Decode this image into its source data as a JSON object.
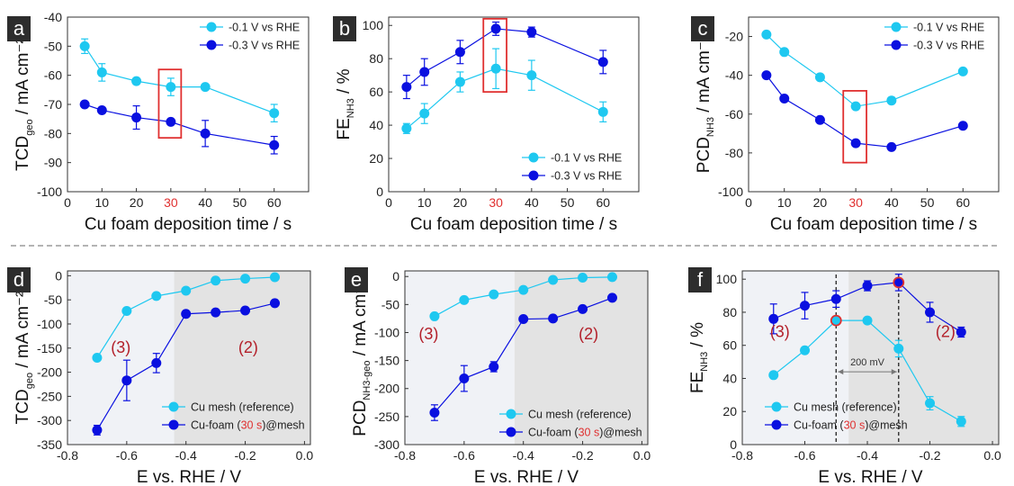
{
  "colors": {
    "series_light": "#1ec8f0",
    "series_dark": "#0a10e0",
    "highlight_box": "#e03030",
    "label_red": "#b3202a",
    "shade_light": "#f0f2f6",
    "shade_dark": "#e3e3e3",
    "panel_label_bg": "#2d2d2d"
  },
  "separator": "dashed-line",
  "chart_data": [
    {
      "panel": "a",
      "type": "line",
      "xlabel": "Cu foam deposition time / s",
      "ylabel_main": "TCD",
      "ylabel_sub": "geo",
      "ylabel_unit": " / mA cm⁻²",
      "xlim": [
        0,
        70
      ],
      "ylim": [
        -100,
        -40
      ],
      "xticks": [
        0,
        10,
        20,
        30,
        40,
        50,
        60
      ],
      "xtick_labels": [
        "0",
        "10",
        "20",
        "30",
        "40",
        "50",
        "60"
      ],
      "yticks": [
        -100,
        -90,
        -80,
        -70,
        -60,
        -50,
        -40
      ],
      "ytick_labels": [
        "-100",
        "-90",
        "-80",
        "-70",
        "-60",
        "-50",
        "-40"
      ],
      "highlight_tick": "30",
      "legend_position": "top-right",
      "series": [
        {
          "name": "-0.1 V vs RHE",
          "color": "light",
          "x": [
            5,
            10,
            20,
            30,
            40,
            60
          ],
          "y": [
            -50,
            -59,
            -62,
            -64,
            -64,
            -73
          ],
          "err": [
            2.5,
            3,
            0,
            3,
            0,
            3
          ]
        },
        {
          "name": "-0.3 V vs RHE",
          "color": "dark",
          "x": [
            5,
            10,
            20,
            30,
            40,
            60
          ],
          "y": [
            -70,
            -72,
            -74.5,
            -76,
            -80,
            -84
          ],
          "err": [
            0,
            0,
            4,
            0,
            4.5,
            3
          ]
        }
      ],
      "highlight_box": {
        "x": [
          26.5,
          33
        ],
        "y": [
          -81.5,
          -58
        ]
      }
    },
    {
      "panel": "b",
      "type": "line",
      "xlabel": "Cu foam deposition time / s",
      "ylabel_main": "FE",
      "ylabel_sub": "NH3",
      "ylabel_unit": " / %",
      "xlim": [
        0,
        70
      ],
      "ylim": [
        0,
        105
      ],
      "xticks": [
        0,
        10,
        20,
        30,
        40,
        50,
        60
      ],
      "xtick_labels": [
        "0",
        "10",
        "20",
        "30",
        "40",
        "50",
        "60"
      ],
      "yticks": [
        0,
        20,
        40,
        60,
        80,
        100
      ],
      "ytick_labels": [
        "0",
        "20",
        "40",
        "60",
        "80",
        "100"
      ],
      "highlight_tick": "30",
      "legend_position": "bottom-right",
      "series": [
        {
          "name": "-0.1 V  vs RHE",
          "color": "light",
          "x": [
            5,
            10,
            20,
            30,
            40,
            60
          ],
          "y": [
            38,
            47,
            66,
            74,
            70,
            48
          ],
          "err": [
            3,
            6,
            6,
            12,
            9,
            6
          ]
        },
        {
          "name": "-0.3 V  vs RHE",
          "color": "dark",
          "x": [
            5,
            10,
            20,
            30,
            40,
            60
          ],
          "y": [
            63,
            72,
            84,
            98,
            96,
            78
          ],
          "err": [
            7,
            8,
            7,
            4,
            3,
            7
          ]
        }
      ],
      "highlight_box": {
        "x": [
          26.5,
          33
        ],
        "y": [
          60,
          104
        ]
      }
    },
    {
      "panel": "c",
      "type": "line",
      "xlabel": "Cu foam deposition time / s",
      "ylabel_main": "PCD",
      "ylabel_sub": "NH3",
      "ylabel_unit": " / mA cm⁻²",
      "xlim": [
        0,
        70
      ],
      "ylim": [
        -100,
        -10
      ],
      "xticks": [
        0,
        10,
        20,
        30,
        40,
        50,
        60
      ],
      "xtick_labels": [
        "0",
        "10",
        "20",
        "30",
        "40",
        "50",
        "60"
      ],
      "yticks": [
        -100,
        -80,
        -60,
        -40,
        -20
      ],
      "ytick_labels": [
        "-100",
        "-80",
        "-60",
        "-40",
        "-20"
      ],
      "highlight_tick": "30",
      "legend_position": "top-right",
      "series": [
        {
          "name": "-0.1 V vs RHE",
          "color": "light",
          "x": [
            5,
            10,
            20,
            30,
            40,
            60
          ],
          "y": [
            -19,
            -28,
            -41,
            -56,
            -53,
            -38
          ],
          "err": [
            0,
            0,
            0,
            0,
            0,
            0
          ]
        },
        {
          "name": "-0.3 V vs RHE",
          "color": "dark",
          "x": [
            5,
            10,
            20,
            30,
            40,
            60
          ],
          "y": [
            -40,
            -52,
            -63,
            -75,
            -77,
            -66
          ],
          "err": [
            0,
            0,
            0,
            0,
            0,
            0
          ]
        }
      ],
      "highlight_box": {
        "x": [
          26.5,
          33
        ],
        "y": [
          -85,
          -48
        ]
      }
    },
    {
      "panel": "d",
      "type": "line",
      "xlabel": "E vs. RHE / V",
      "ylabel_main": "TCD",
      "ylabel_sub": "geo",
      "ylabel_unit": " / mA cm⁻²",
      "xlim": [
        -0.8,
        0.02
      ],
      "ylim": [
        -350,
        10
      ],
      "xticks": [
        -0.8,
        -0.6,
        -0.4,
        -0.2,
        0.0
      ],
      "xtick_labels": [
        "-0.8",
        "-0.6",
        "-0.4",
        "-0.2",
        "0.0"
      ],
      "yticks": [
        -350,
        -300,
        -250,
        -200,
        -150,
        -100,
        -50,
        0
      ],
      "ytick_labels": [
        "-350",
        "-300",
        "-250",
        "-200",
        "-150",
        "-100",
        "-50",
        "0"
      ],
      "shade": {
        "light_to": -0.44
      },
      "region_labels": [
        {
          "text": "(3)",
          "x": -0.62,
          "y": -160
        },
        {
          "text": "(2)",
          "x": -0.19,
          "y": -160
        }
      ],
      "legend_position": "bottom-right",
      "series": [
        {
          "name": "Cu mesh (reference)",
          "color": "light",
          "x": [
            -0.7,
            -0.6,
            -0.5,
            -0.4,
            -0.3,
            -0.2,
            -0.1
          ],
          "y": [
            -170,
            -73,
            -42,
            -31,
            -10,
            -6,
            -3
          ],
          "err": [
            0,
            0,
            0,
            0,
            0,
            0,
            0
          ]
        },
        {
          "name_pre": "Cu-foam (",
          "name_red": "30 s",
          "name_post": ")@mesh",
          "color": "dark",
          "x": [
            -0.7,
            -0.6,
            -0.5,
            -0.4,
            -0.3,
            -0.2,
            -0.1
          ],
          "y": [
            -320,
            -217,
            -181,
            -79,
            -76,
            -72,
            -57
          ],
          "err": [
            10,
            42,
            20,
            0,
            0,
            0,
            0
          ]
        }
      ]
    },
    {
      "panel": "e",
      "type": "line",
      "xlabel": "E vs. RHE / V",
      "ylabel_main": "PCD",
      "ylabel_sub": "NH3-geo",
      "ylabel_unit": " / mA cm⁻²",
      "xlim": [
        -0.8,
        0.02
      ],
      "ylim": [
        -300,
        10
      ],
      "xticks": [
        -0.8,
        -0.6,
        -0.4,
        -0.2,
        0.0
      ],
      "xtick_labels": [
        "-0.8",
        "-0.6",
        "-0.4",
        "-0.2",
        "0.0"
      ],
      "yticks": [
        -300,
        -250,
        -200,
        -150,
        -100,
        -50,
        0
      ],
      "ytick_labels": [
        "-300",
        "-250",
        "-200",
        "-150",
        "-100",
        "-50",
        "0"
      ],
      "shade": {
        "light_to": -0.43
      },
      "region_labels": [
        {
          "text": "(3)",
          "x": -0.72,
          "y": -112
        },
        {
          "text": "(2)",
          "x": -0.18,
          "y": -112
        }
      ],
      "legend_position": "bottom-right",
      "series": [
        {
          "name": "Cu mesh (reference)",
          "color": "light",
          "x": [
            -0.7,
            -0.6,
            -0.5,
            -0.4,
            -0.3,
            -0.2,
            -0.1
          ],
          "y": [
            -71,
            -42,
            -32,
            -24,
            -6,
            -2,
            -1
          ],
          "err": [
            0,
            0,
            0,
            0,
            0,
            0,
            0
          ]
        },
        {
          "name_pre": "Cu-foam (",
          "name_red": "30 s",
          "name_post": ")@mesh",
          "color": "dark",
          "x": [
            -0.7,
            -0.6,
            -0.5,
            -0.4,
            -0.3,
            -0.2,
            -0.1
          ],
          "y": [
            -243,
            -182,
            -161,
            -76,
            -75,
            -58,
            -38
          ],
          "err": [
            14,
            23,
            9,
            0,
            0,
            0,
            0
          ]
        }
      ]
    },
    {
      "panel": "f",
      "type": "line",
      "xlabel": "E vs. RHE / V",
      "ylabel_main": "FE",
      "ylabel_sub": "NH3",
      "ylabel_unit": " / %",
      "xlim": [
        -0.8,
        0.02
      ],
      "ylim": [
        0,
        105
      ],
      "xticks": [
        -0.8,
        -0.6,
        -0.4,
        -0.2,
        0.0
      ],
      "xtick_labels": [
        "-0.8",
        "-0.6",
        "-0.4",
        "-0.2",
        "0.0"
      ],
      "yticks": [
        0,
        20,
        40,
        60,
        80,
        100
      ],
      "ytick_labels": [
        "0",
        "20",
        "40",
        "60",
        "80",
        "100"
      ],
      "shade": {
        "light_to": -0.46
      },
      "region_labels": [
        {
          "text": "(3)",
          "x": -0.68,
          "y": 65
        },
        {
          "text": "(2)",
          "x": -0.15,
          "y": 65
        }
      ],
      "legend_position": "bottom-right",
      "series": [
        {
          "name": "Cu mesh (reference)",
          "color": "light",
          "x": [
            -0.7,
            -0.6,
            -0.5,
            -0.4,
            -0.3,
            -0.2,
            -0.1
          ],
          "y": [
            42,
            57,
            75,
            75,
            58,
            25,
            14
          ],
          "err": [
            0,
            0,
            0,
            0,
            5,
            4,
            3
          ]
        },
        {
          "name_pre": "Cu-foam (",
          "name_red": "30 s",
          "name_post": ")@mesh",
          "color": "dark",
          "x": [
            -0.7,
            -0.6,
            -0.5,
            -0.4,
            -0.3,
            -0.2,
            -0.1
          ],
          "y": [
            76,
            84,
            88,
            96,
            98,
            80,
            68
          ],
          "err": [
            9,
            8,
            5,
            3,
            5,
            6,
            3
          ]
        }
      ],
      "highlight_points": [
        {
          "series": 0,
          "x": -0.5
        },
        {
          "series": 1,
          "x": -0.3
        }
      ],
      "vlines": [
        -0.5,
        -0.3
      ],
      "annotation": {
        "text": "200 mV",
        "x1": -0.5,
        "x2": -0.3,
        "y": 44
      }
    }
  ]
}
